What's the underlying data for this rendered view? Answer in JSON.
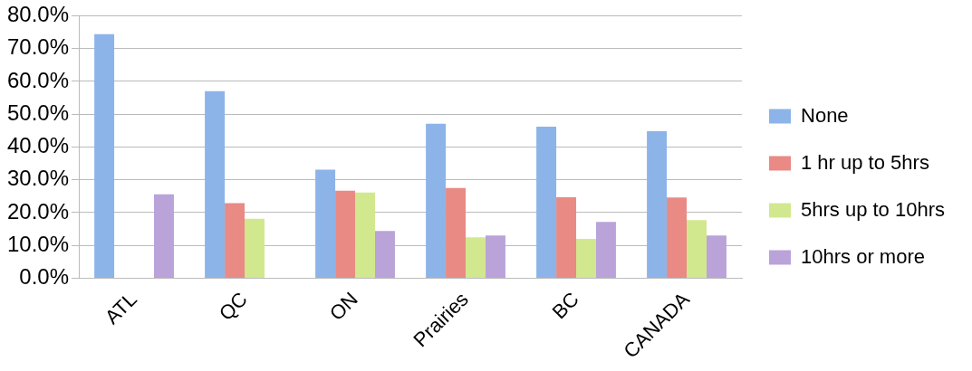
{
  "chart_data": {
    "type": "bar",
    "categories": [
      "ATL",
      "QC",
      "ON",
      "Prairies",
      "BC",
      "CANADA"
    ],
    "series": [
      {
        "name": "None",
        "color": "#8cb4e8",
        "values": [
          74.4,
          57.0,
          33.1,
          47.1,
          46.2,
          44.8
        ]
      },
      {
        "name": "1 hr up to 5hrs",
        "color": "#e98a85",
        "values": [
          null,
          22.9,
          26.7,
          27.5,
          24.7,
          24.6
        ]
      },
      {
        "name": "5hrs up to 10hrs",
        "color": "#d2e88e",
        "values": [
          null,
          18.1,
          26.1,
          12.5,
          12.0,
          17.7
        ]
      },
      {
        "name": "10hrs or more",
        "color": "#b9a3d9",
        "values": [
          25.6,
          null,
          14.4,
          13.0,
          17.2,
          13.0
        ]
      }
    ],
    "ylim": [
      0,
      80
    ],
    "yticks": [
      {
        "value": 0,
        "label": "0.0%"
      },
      {
        "value": 10,
        "label": "10.0%"
      },
      {
        "value": 20,
        "label": "20.0%"
      },
      {
        "value": 30,
        "label": "30.0%"
      },
      {
        "value": 40,
        "label": "40.0%"
      },
      {
        "value": 50,
        "label": "50.0%"
      },
      {
        "value": 60,
        "label": "60.0%"
      },
      {
        "value": 70,
        "label": "70.0%"
      },
      {
        "value": 80,
        "label": "80.0%"
      }
    ],
    "grid": "y",
    "legend": "right"
  }
}
